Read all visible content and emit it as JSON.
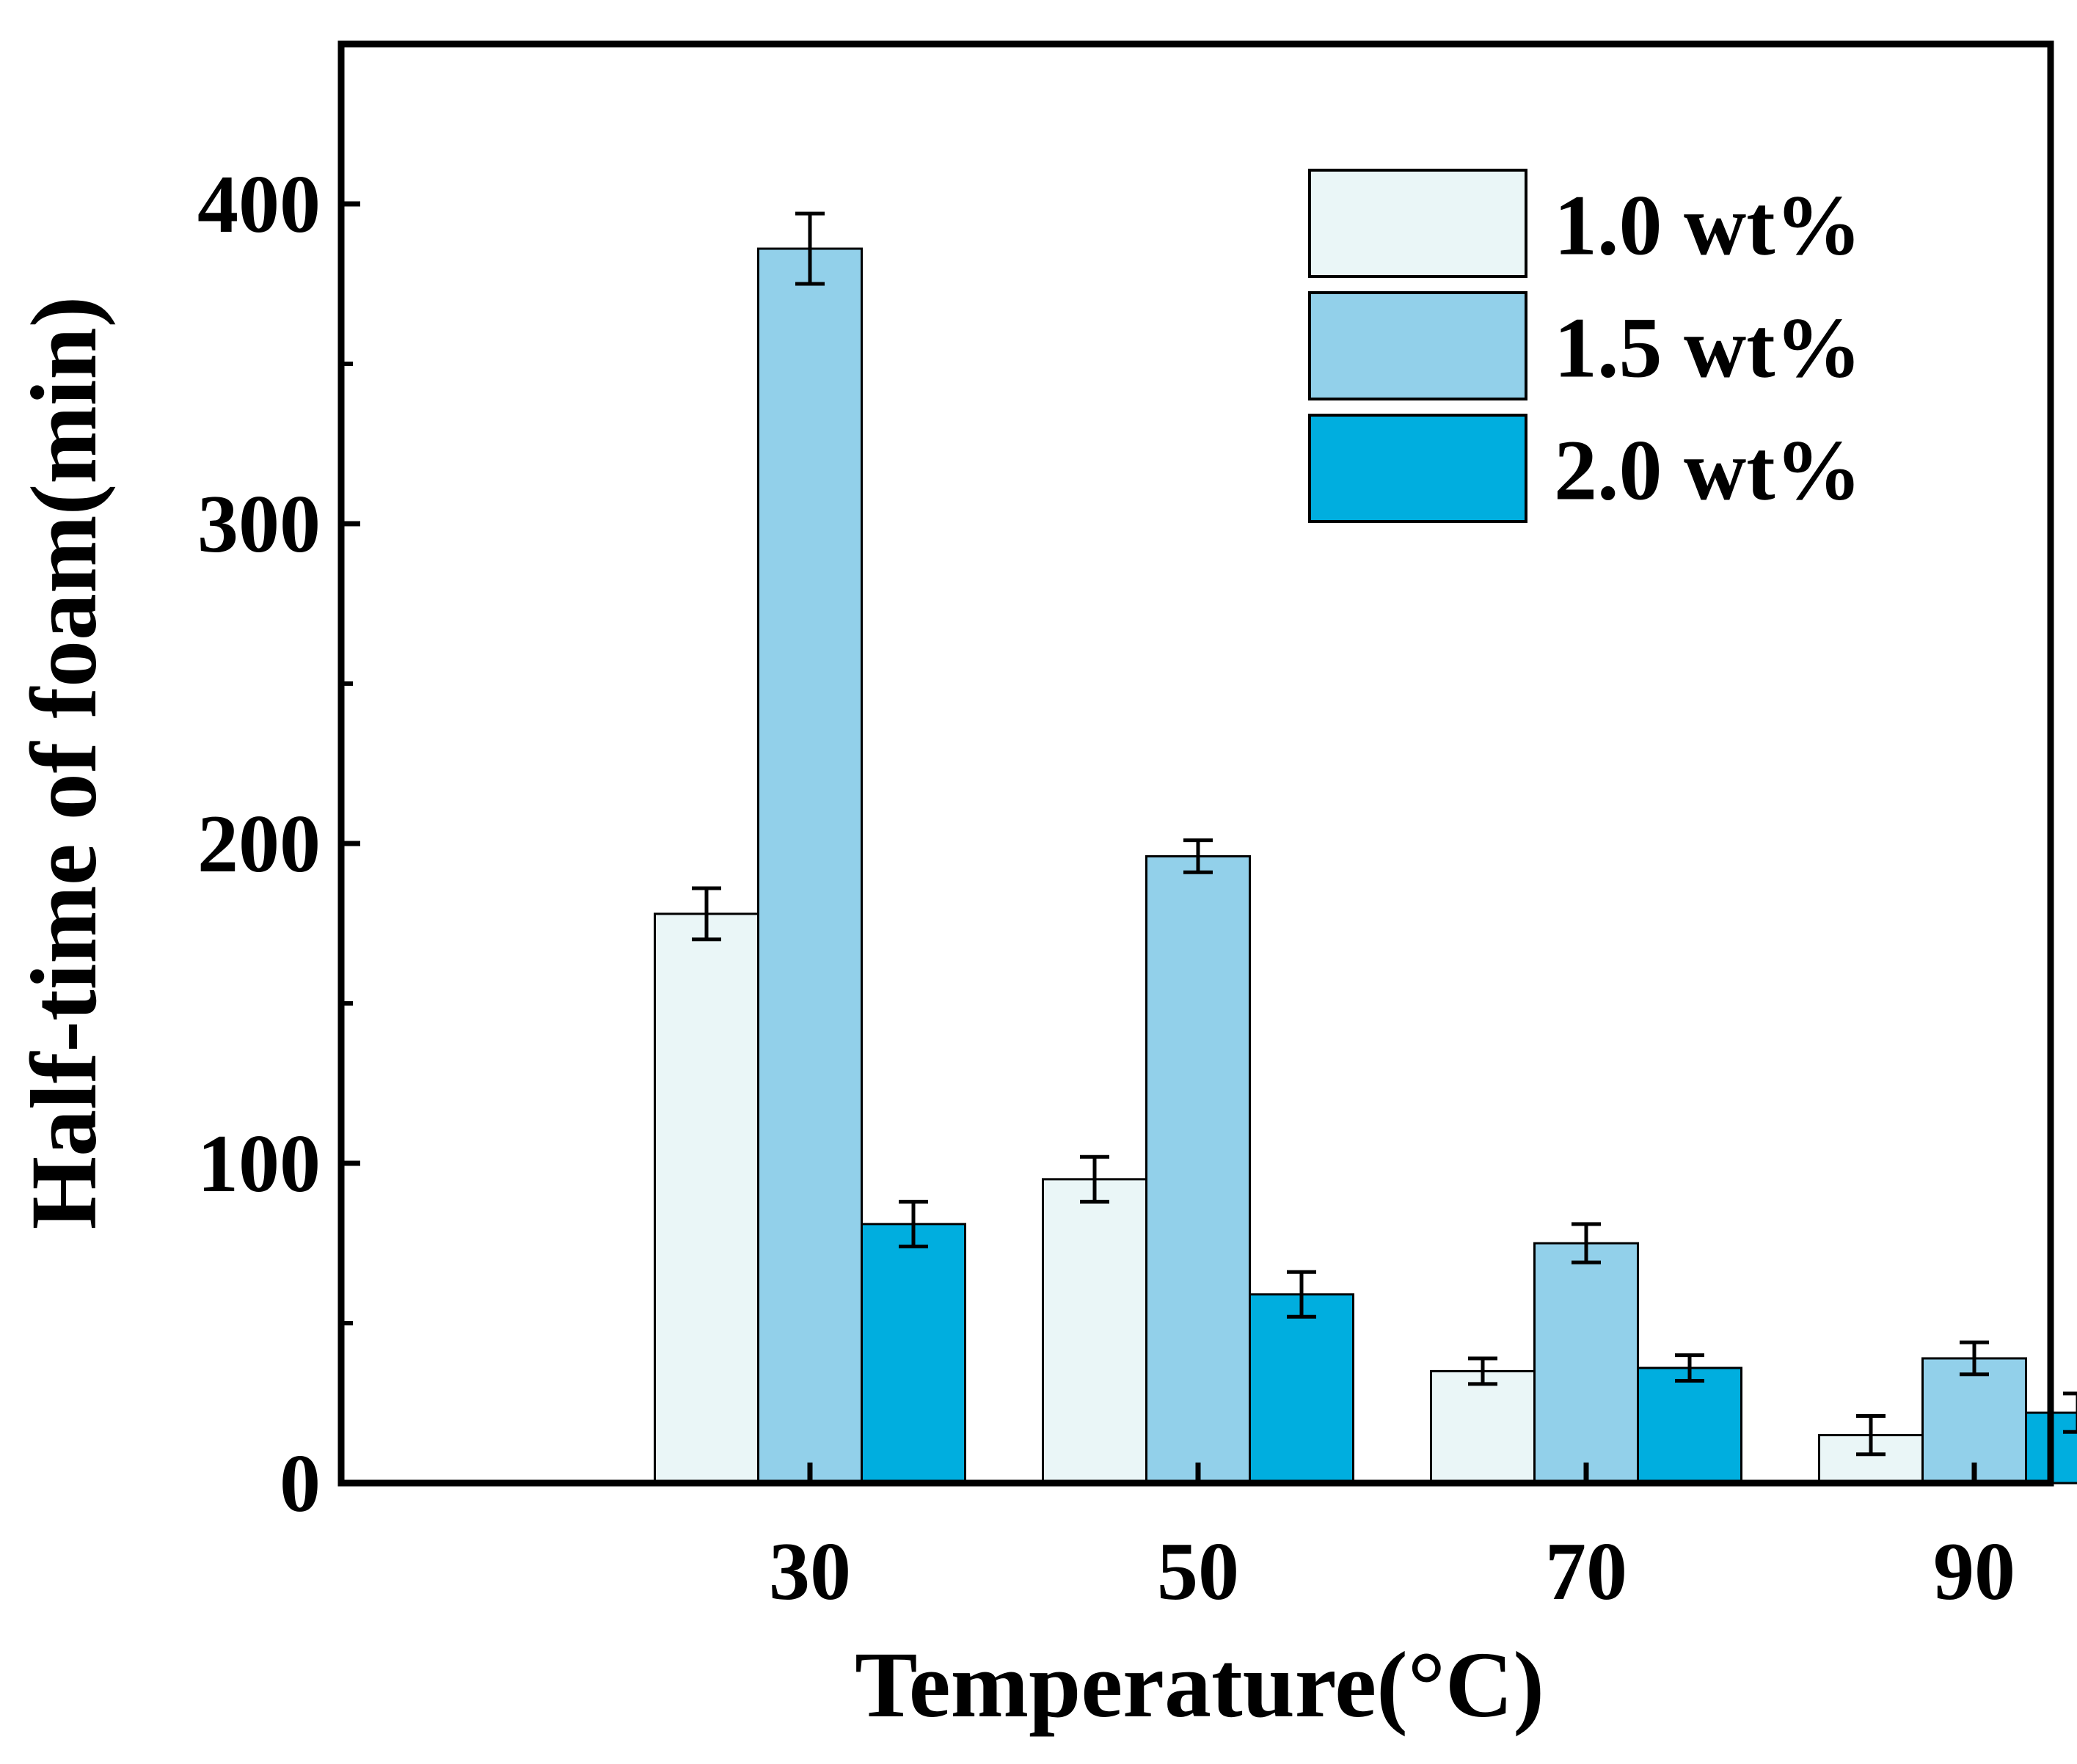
{
  "colors": {
    "series": [
      "#EAF6F7",
      "#92D0EA",
      "#00AEDF"
    ],
    "axis": "#000000",
    "background": "#ffffff"
  },
  "chart_data": {
    "type": "bar",
    "title": "",
    "xlabel": "Temperature(°C)",
    "ylabel": "Half-time of foam(min)",
    "categories": [
      "30",
      "50",
      "70",
      "90"
    ],
    "ylim": [
      0,
      450
    ],
    "yticks": [
      0,
      100,
      200,
      300,
      400
    ],
    "yticks_minor": [
      50,
      150,
      250,
      350
    ],
    "grid": false,
    "legend_position": "top-right",
    "series": [
      {
        "name": "1.0 wt%",
        "values": [
          178,
          95,
          35,
          15
        ],
        "errors": [
          8,
          7,
          4,
          6
        ]
      },
      {
        "name": "1.5 wt%",
        "values": [
          386,
          196,
          75,
          39
        ],
        "errors": [
          11,
          5,
          6,
          5
        ]
      },
      {
        "name": "2.0 wt%",
        "values": [
          81,
          59,
          36,
          22
        ],
        "errors": [
          7,
          7,
          4,
          6
        ]
      }
    ]
  }
}
